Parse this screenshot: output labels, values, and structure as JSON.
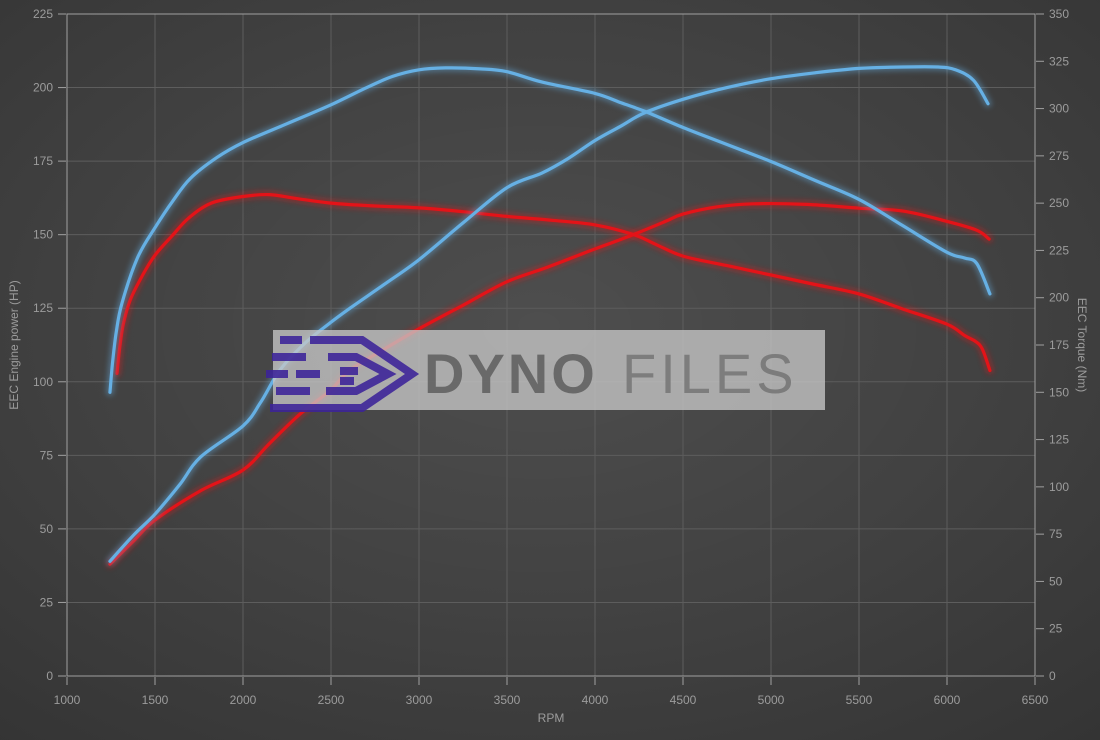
{
  "chart_data": {
    "type": "line",
    "title": "",
    "xlabel": "RPM",
    "ylabel_left": "EEC Engine power (HP)",
    "ylabel_right": "EEC Torque (Nm)",
    "x_range": [
      1000,
      6500
    ],
    "x_ticks": [
      1000,
      1500,
      2000,
      2500,
      3000,
      3500,
      4000,
      4500,
      5000,
      5500,
      6000,
      6500
    ],
    "y_left_range": [
      0,
      225
    ],
    "y_left_ticks": [
      0,
      25,
      50,
      75,
      100,
      125,
      150,
      175,
      200,
      225
    ],
    "y_right_range": [
      0,
      350
    ],
    "y_right_ticks": [
      0,
      25,
      50,
      75,
      100,
      125,
      150,
      175,
      200,
      225,
      250,
      275,
      300,
      325,
      350
    ],
    "grid": true,
    "legend_position": "none",
    "colors": {
      "blue_series": "#66b0e4",
      "red_series": "#e41318",
      "grid": "#5d5d5d",
      "frame": "#a0a0a0",
      "axis_text": "#9c9c9c",
      "watermark_band": "#c7c7c7",
      "watermark_purple": "#3c2399"
    },
    "series": [
      {
        "name": "red-power-hp",
        "axis": "left",
        "color": "#e41318",
        "points": [
          [
            1244,
            38
          ],
          [
            1380,
            46
          ],
          [
            1500,
            53
          ],
          [
            1760,
            63
          ],
          [
            2000,
            70
          ],
          [
            2150,
            79
          ],
          [
            2324,
            89
          ],
          [
            2495,
            97
          ],
          [
            2608,
            104
          ],
          [
            2800,
            111
          ],
          [
            3000,
            118
          ],
          [
            3250,
            126
          ],
          [
            3500,
            134
          ],
          [
            3733,
            139
          ],
          [
            3972,
            144.5
          ],
          [
            4216,
            150
          ],
          [
            4400,
            154.5
          ],
          [
            4500,
            157
          ],
          [
            4700,
            159.5
          ],
          [
            4900,
            160.5
          ],
          [
            5200,
            160.3
          ],
          [
            5500,
            159
          ],
          [
            5750,
            158
          ],
          [
            6000,
            154.5
          ],
          [
            6170,
            151.5
          ],
          [
            6239,
            148.5
          ]
        ]
      },
      {
        "name": "red-torque-nm",
        "axis": "right",
        "color": "#e41318",
        "points": [
          [
            1284,
            160
          ],
          [
            1300,
            174
          ],
          [
            1320,
            186
          ],
          [
            1360,
            199
          ],
          [
            1430,
            212
          ],
          [
            1500,
            222.5
          ],
          [
            1600,
            233
          ],
          [
            1690,
            242
          ],
          [
            1820,
            250
          ],
          [
            2000,
            253.5
          ],
          [
            2150,
            254.5
          ],
          [
            2300,
            252.5
          ],
          [
            2500,
            250
          ],
          [
            2750,
            248.5
          ],
          [
            3000,
            247.5
          ],
          [
            3250,
            245.5
          ],
          [
            3500,
            243
          ],
          [
            3750,
            241
          ],
          [
            4000,
            238.5
          ],
          [
            4216,
            233.5
          ],
          [
            4350,
            228
          ],
          [
            4500,
            222
          ],
          [
            4750,
            217
          ],
          [
            5000,
            212
          ],
          [
            5250,
            207
          ],
          [
            5500,
            202
          ],
          [
            5750,
            194
          ],
          [
            6000,
            186
          ],
          [
            6100,
            180
          ],
          [
            6160,
            177
          ],
          [
            6200,
            173
          ],
          [
            6244,
            161.5
          ]
        ]
      },
      {
        "name": "blue-power-hp",
        "axis": "left",
        "color": "#66b0e4",
        "points": [
          [
            1244,
            39
          ],
          [
            1380,
            48
          ],
          [
            1500,
            55
          ],
          [
            1640,
            65
          ],
          [
            1760,
            74.5
          ],
          [
            2000,
            85
          ],
          [
            2100,
            93
          ],
          [
            2210,
            104
          ],
          [
            2350,
            113
          ],
          [
            2495,
            120
          ],
          [
            2608,
            125
          ],
          [
            2800,
            133
          ],
          [
            3000,
            141.5
          ],
          [
            3250,
            154
          ],
          [
            3500,
            166
          ],
          [
            3700,
            171
          ],
          [
            3850,
            176
          ],
          [
            4000,
            182
          ],
          [
            4150,
            187
          ],
          [
            4284,
            191.5
          ],
          [
            4500,
            196
          ],
          [
            4750,
            200
          ],
          [
            5000,
            203
          ],
          [
            5250,
            205
          ],
          [
            5500,
            206.5
          ],
          [
            5750,
            207
          ],
          [
            5950,
            207
          ],
          [
            6050,
            206
          ],
          [
            6150,
            202.5
          ],
          [
            6233,
            194.5
          ]
        ]
      },
      {
        "name": "blue-torque-nm",
        "axis": "right",
        "color": "#66b0e4",
        "points": [
          [
            1244,
            150
          ],
          [
            1258,
            165
          ],
          [
            1280,
            182
          ],
          [
            1312,
            197
          ],
          [
            1400,
            221
          ],
          [
            1500,
            237
          ],
          [
            1600,
            251
          ],
          [
            1700,
            263
          ],
          [
            1850,
            274
          ],
          [
            2000,
            282
          ],
          [
            2250,
            292
          ],
          [
            2500,
            302
          ],
          [
            2700,
            311
          ],
          [
            2850,
            317
          ],
          [
            3000,
            320.5
          ],
          [
            3150,
            321.5
          ],
          [
            3350,
            321
          ],
          [
            3500,
            319.5
          ],
          [
            3700,
            314
          ],
          [
            4000,
            308
          ],
          [
            4150,
            303
          ],
          [
            4284,
            298.5
          ],
          [
            4500,
            290
          ],
          [
            4750,
            281
          ],
          [
            5000,
            272
          ],
          [
            5250,
            262
          ],
          [
            5500,
            252
          ],
          [
            5750,
            238
          ],
          [
            6000,
            224
          ],
          [
            6100,
            221
          ],
          [
            6170,
            218
          ],
          [
            6244,
            202
          ]
        ]
      }
    ],
    "watermark": {
      "bold_text": "DYNO",
      "light_text": "FILES"
    }
  }
}
